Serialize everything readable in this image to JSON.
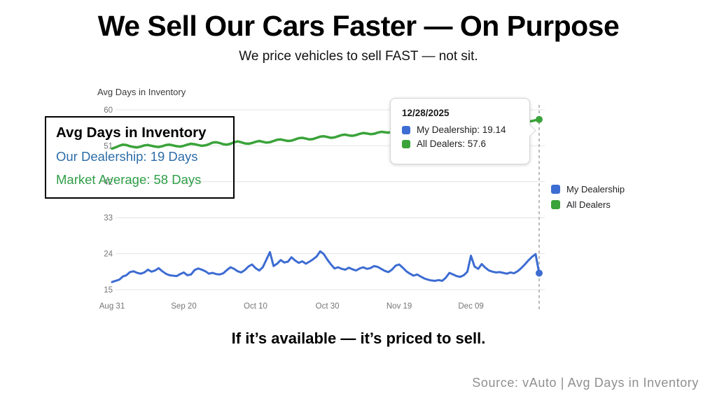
{
  "header": {
    "title": "We Sell Our Cars Faster — On Purpose",
    "subtitle": "We price vehicles to sell FAST — not sit."
  },
  "overlay_box": {
    "title": "Avg Days in Inventory",
    "line1": "Our Dealership: 19 Days",
    "line1_color": "#2d6da8",
    "line2": "Market Average: 58 Days",
    "line2_color": "#2f9e47"
  },
  "tooltip": {
    "date": "12/28/2025",
    "items": [
      {
        "text": "My Dealership: 19.14",
        "color": "#3d6cd2"
      },
      {
        "text": "All Dealers: 57.6",
        "color": "#3aa33a"
      }
    ]
  },
  "legend": {
    "items": [
      {
        "label": "My Dealership",
        "color": "#3d6cd2"
      },
      {
        "label": "All Dealers",
        "color": "#3aa33a"
      }
    ]
  },
  "footer": {
    "tagline": "If it’s available — it’s priced to sell.",
    "source": "Source: vAuto | Avg Days in Inventory"
  },
  "chart_data": {
    "type": "line",
    "title": "Avg Days in Inventory",
    "x_tick_labels": [
      "Aug 31",
      "Sep 20",
      "Oct 10",
      "Oct 30",
      "Nov 19",
      "Dec 09"
    ],
    "x_tick_days": [
      0,
      20,
      40,
      60,
      80,
      100
    ],
    "x_range_days": 119,
    "y_ticks": [
      15,
      24,
      33,
      42,
      51,
      60
    ],
    "ylim": [
      15,
      60
    ],
    "grid": true,
    "legend_position": "right",
    "crosshair": {
      "date": "12/28/2025",
      "my_dealership": 19.14,
      "all_dealers": 57.6
    },
    "axis_colors": {
      "grid": "#e4e4e4",
      "tick_text": "#757575",
      "crosshair": "#9e9e9e"
    },
    "series": [
      {
        "name": "My Dealership",
        "color": "#3d6cd2",
        "values": [
          16.9,
          17.2,
          17.5,
          18.3,
          18.6,
          19.4,
          19.6,
          19.2,
          19.0,
          19.3,
          20.0,
          19.5,
          19.8,
          20.4,
          19.6,
          19.0,
          18.6,
          18.5,
          18.4,
          18.9,
          19.3,
          18.6,
          18.8,
          19.9,
          20.3,
          20.0,
          19.6,
          19.0,
          19.2,
          18.9,
          18.8,
          19.1,
          19.9,
          20.6,
          20.2,
          19.6,
          19.3,
          19.9,
          20.8,
          21.3,
          20.4,
          19.8,
          20.6,
          22.5,
          24.4,
          20.9,
          21.5,
          22.4,
          21.8,
          22.0,
          23.1,
          22.3,
          21.7,
          22.1,
          21.5,
          22.0,
          22.6,
          23.3,
          24.6,
          23.9,
          22.5,
          21.3,
          20.3,
          20.6,
          20.2,
          20.0,
          20.5,
          20.1,
          19.8,
          20.3,
          20.6,
          20.2,
          20.4,
          20.9,
          20.7,
          20.2,
          19.7,
          19.4,
          20.0,
          21.0,
          21.3,
          20.5,
          19.6,
          19.0,
          18.5,
          18.8,
          18.3,
          17.8,
          17.5,
          17.3,
          17.2,
          17.4,
          17.2,
          18.0,
          19.2,
          18.8,
          18.4,
          18.2,
          18.6,
          19.5,
          23.5,
          20.8,
          20.2,
          21.4,
          20.5,
          19.8,
          19.5,
          19.3,
          19.4,
          19.2,
          19.0,
          19.3,
          19.1,
          19.6,
          20.4,
          21.3,
          22.3,
          23.2,
          23.9,
          19.14
        ]
      },
      {
        "name": "All Dealers",
        "color": "#3aa33a",
        "values": [
          50.3,
          50.6,
          51.0,
          51.3,
          51.2,
          50.9,
          50.7,
          50.6,
          50.8,
          51.1,
          51.2,
          51.0,
          50.8,
          50.7,
          50.9,
          51.2,
          51.3,
          51.1,
          50.9,
          50.8,
          51.0,
          51.3,
          51.5,
          51.4,
          51.2,
          51.0,
          51.1,
          51.4,
          51.8,
          51.9,
          51.7,
          51.4,
          51.3,
          51.5,
          51.9,
          52.1,
          51.9,
          51.6,
          51.5,
          51.7,
          52.0,
          52.2,
          52.0,
          51.8,
          51.9,
          52.2,
          52.5,
          52.6,
          52.4,
          52.2,
          52.3,
          52.6,
          52.9,
          53.0,
          52.8,
          52.6,
          52.7,
          53.0,
          53.3,
          53.4,
          53.2,
          53.0,
          53.1,
          53.4,
          53.7,
          53.8,
          53.6,
          53.5,
          53.7,
          54.0,
          54.2,
          54.1,
          53.9,
          54.0,
          54.3,
          54.5,
          54.4,
          54.3,
          54.5,
          54.8,
          55.0,
          54.9,
          54.8,
          55.0,
          55.3,
          55.5,
          55.4,
          55.3,
          55.5,
          55.8,
          55.9,
          55.8,
          55.7,
          55.9,
          56.1,
          56.2,
          56.1,
          56.0,
          56.2,
          56.4,
          56.5,
          56.4,
          56.3,
          56.5,
          56.7,
          56.8,
          56.7,
          56.6,
          56.8,
          57.0,
          57.0,
          56.9,
          56.9,
          57.0,
          57.1,
          57.0,
          57.1,
          57.2,
          57.4,
          57.6
        ]
      }
    ]
  }
}
